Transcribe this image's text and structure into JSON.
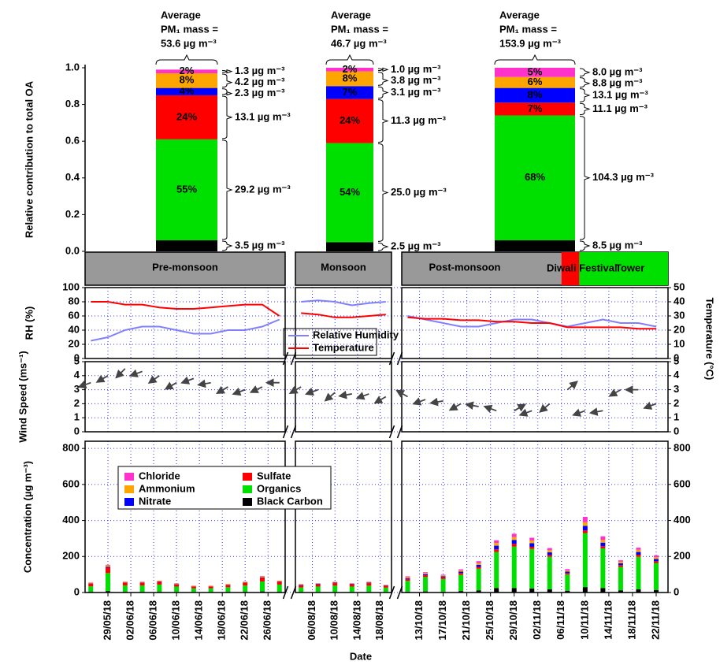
{
  "chart_data": [
    {
      "type": "stacked_bar",
      "y_label": "Relative contribution to total OA",
      "ylim": [
        0,
        1
      ],
      "yticks": [
        {
          "value": 0,
          "label": "0.0"
        },
        {
          "value": 0.2,
          "label": "0.2"
        },
        {
          "value": 0.4,
          "label": "0.4"
        },
        {
          "value": 0.6,
          "label": "0.6"
        },
        {
          "value": 0.8,
          "label": "0.8"
        },
        {
          "value": 1,
          "label": "1.0"
        }
      ],
      "categories": [
        "Pre-monsoon",
        "Monsoon",
        "Post-monsoon"
      ],
      "average_labels": [
        [
          "Average",
          "PM₁ mass =",
          "53.6 µg m⁻³"
        ],
        [
          "Average",
          "PM₁ mass =",
          "46.7 µg m⁻³"
        ],
        [
          "Average",
          "PM₁ mass =",
          "153.9 µg m⁻³"
        ]
      ],
      "series": [
        {
          "color": "#ff33cc",
          "values": [
            0.02,
            0.02,
            0.05
          ],
          "value_labels": [
            "2%",
            "2%",
            "5%"
          ],
          "mass_labels": [
            "1.3 µg m⁻³",
            "1.0 µg m⁻³",
            "8.0 µg m⁻³"
          ]
        },
        {
          "color": "#ffa500",
          "values": [
            0.08,
            0.08,
            0.06
          ],
          "value_labels": [
            "8%",
            "8%",
            "6%"
          ],
          "mass_labels": [
            "4.2 µg m⁻³",
            "3.8 µg m⁻³",
            "8.8 µg m⁻³"
          ]
        },
        {
          "color": "#0000ff",
          "values": [
            0.04,
            0.07,
            0.08
          ],
          "value_labels": [
            "4%",
            "7%",
            "8%"
          ],
          "mass_labels": [
            "2.3 µg m⁻³",
            "3.1 µg m⁻³",
            "13.1 µg m⁻³"
          ]
        },
        {
          "color": "#ff0000",
          "values": [
            0.24,
            0.24,
            0.07
          ],
          "value_labels": [
            "24%",
            "24%",
            "7%"
          ],
          "mass_labels": [
            "13.1 µg m⁻³",
            "11.3 µg m⁻³",
            "11.1 µg m⁻³"
          ]
        },
        {
          "color": "#00e000",
          "values": [
            0.55,
            0.54,
            0.68
          ],
          "value_labels": [
            "55%",
            "54%",
            "68%"
          ],
          "mass_labels": [
            "29.2 µg m⁻³",
            "25.0 µg m⁻³",
            "104.3 µg m⁻³"
          ]
        },
        {
          "color": "#000000",
          "values": [
            0.06,
            0.05,
            0.06
          ],
          "value_labels": [
            "6%",
            "5%",
            "6%"
          ],
          "mass_labels": [
            "3.5 µg m⁻³",
            "2.5 µg m⁻³",
            "8.5 µg m⁻³"
          ]
        }
      ]
    },
    {
      "type": "line",
      "y_label": "RH (%)",
      "y2_label": "Temperature (°C)",
      "ylim": [
        0,
        100
      ],
      "yticks": [
        0,
        20,
        40,
        60,
        80,
        100
      ],
      "y2lim": [
        0,
        50
      ],
      "y2ticks": [
        0,
        10,
        20,
        30,
        40,
        50
      ],
      "grid": true,
      "legend": "bottom",
      "periods": [
        {
          "name": "Diwali Festival",
          "color": "#ff0000",
          "start": "06/11/18",
          "end": "09/11/18"
        },
        {
          "name": "Tower",
          "color": "#00e000",
          "start": "09/11/18",
          "end": "24/11/18"
        }
      ],
      "x": [
        "26/05/18",
        "29/05/18",
        "01/06/18",
        "04/06/18",
        "07/06/18",
        "10/06/18",
        "13/06/18",
        "16/06/18",
        "19/06/18",
        "22/06/18",
        "25/06/18",
        "28/06/18",
        "04/08/18",
        "07/08/18",
        "10/08/18",
        "13/08/18",
        "16/08/18",
        "19/08/18",
        "11/10/18",
        "14/10/18",
        "17/10/18",
        "20/10/18",
        "23/10/18",
        "26/10/18",
        "29/10/18",
        "01/11/18",
        "04/11/18",
        "07/11/18",
        "10/11/18",
        "13/11/18",
        "16/11/18",
        "19/11/18",
        "22/11/18"
      ],
      "series": [
        {
          "name": "Relative Humidity",
          "color": "#8080ff",
          "values": [
            25,
            30,
            40,
            45,
            45,
            40,
            35,
            35,
            40,
            40,
            45,
            55,
            80,
            82,
            80,
            75,
            78,
            80,
            60,
            55,
            50,
            45,
            45,
            50,
            55,
            55,
            50,
            45,
            50,
            55,
            50,
            50,
            45
          ]
        },
        {
          "name": "Temperature",
          "color": "#ff0000",
          "axis": "y2",
          "values": [
            40,
            40,
            38,
            38,
            36,
            35,
            35,
            36,
            37,
            38,
            38,
            30,
            32,
            31,
            29,
            29,
            30,
            31,
            29,
            28,
            28,
            27,
            27,
            26,
            26,
            25,
            25,
            22,
            22,
            22,
            22,
            21,
            21
          ]
        }
      ]
    },
    {
      "type": "quiver",
      "y_label": "Wind Speed (ms⁻¹)",
      "ylim": [
        0,
        5
      ],
      "yticks": [
        0,
        1,
        2,
        3,
        4,
        5
      ],
      "y2lim": [
        0,
        5
      ],
      "y2ticks": [
        0,
        1,
        2,
        3,
        4,
        5
      ],
      "grid": true,
      "color": "#444444",
      "x": [
        "26/05/18",
        "29/05/18",
        "01/06/18",
        "04/06/18",
        "07/06/18",
        "10/06/18",
        "13/06/18",
        "16/06/18",
        "19/06/18",
        "22/06/18",
        "25/06/18",
        "28/06/18",
        "04/08/18",
        "07/08/18",
        "10/08/18",
        "13/08/18",
        "16/08/18",
        "19/08/18",
        "11/10/18",
        "14/10/18",
        "17/10/18",
        "20/10/18",
        "23/10/18",
        "26/10/18",
        "29/10/18",
        "01/11/18",
        "04/11/18",
        "07/11/18",
        "10/11/18",
        "13/11/18",
        "16/11/18",
        "19/11/18",
        "22/11/18"
      ],
      "values": [
        3.5,
        4.0,
        4.5,
        4.3,
        4.0,
        3.5,
        3.8,
        3.5,
        3.2,
        3.0,
        3.2,
        3.5,
        3.2,
        3.0,
        2.8,
        2.7,
        2.7,
        2.5,
        2.5,
        2.3,
        2.2,
        2.0,
        1.8,
        1.5,
        1.5,
        1.5,
        2.0,
        3.0,
        1.5,
        1.5,
        3.0,
        3.0,
        2.0
      ],
      "directions": [
        200,
        210,
        225,
        200,
        215,
        210,
        200,
        190,
        210,
        200,
        205,
        180,
        210,
        200,
        220,
        190,
        200,
        210,
        150,
        200,
        190,
        210,
        170,
        160,
        30,
        200,
        220,
        40,
        200,
        190,
        210,
        180,
        200
      ]
    },
    {
      "type": "stacked_time_bar",
      "y_label": "Concentration (µg m⁻³)",
      "ylim": [
        0,
        840
      ],
      "yticks": [
        0,
        200,
        400,
        600,
        800
      ],
      "y2lim": [
        0,
        840
      ],
      "y2ticks": [
        0,
        200,
        400,
        600,
        800
      ],
      "grid": true,
      "legend": "top-left",
      "x_label": "Date",
      "x_segments": [
        [
          "25/05/18",
          "29/06/18"
        ],
        [
          "03/08/18",
          "20/08/18"
        ],
        [
          "10/10/18",
          "24/11/18"
        ]
      ],
      "xticks": [
        "29/05/18",
        "02/06/18",
        "06/06/18",
        "10/06/18",
        "14/06/18",
        "18/06/18",
        "22/06/18",
        "26/06/18",
        "06/08/18",
        "10/08/18",
        "14/08/18",
        "18/08/18",
        "13/10/18",
        "17/10/18",
        "21/10/18",
        "25/10/18",
        "29/10/18",
        "02/11/18",
        "06/11/18",
        "10/11/18",
        "14/11/18",
        "18/11/18",
        "22/11/18"
      ],
      "x": [
        "26/05/18",
        "29/05/18",
        "01/06/18",
        "04/06/18",
        "07/06/18",
        "10/06/18",
        "13/06/18",
        "16/06/18",
        "19/06/18",
        "22/06/18",
        "25/06/18",
        "28/06/18",
        "04/08/18",
        "07/08/18",
        "10/08/18",
        "13/08/18",
        "16/08/18",
        "19/08/18",
        "11/10/18",
        "14/10/18",
        "17/10/18",
        "20/10/18",
        "23/10/18",
        "26/10/18",
        "29/10/18",
        "01/11/18",
        "04/11/18",
        "07/11/18",
        "10/11/18",
        "13/11/18",
        "16/11/18",
        "19/11/18",
        "22/11/18"
      ],
      "series": [
        {
          "name": "Chloride",
          "color": "#ff33cc",
          "values": [
            1,
            3,
            1,
            1,
            1,
            1,
            1,
            1,
            1,
            1,
            2,
            1,
            1,
            1,
            1,
            1,
            1,
            1,
            5,
            5,
            4,
            6,
            10,
            15,
            18,
            15,
            12,
            8,
            30,
            20,
            8,
            12,
            10
          ]
        },
        {
          "name": "Ammonium",
          "color": "#ffa500",
          "values": [
            4,
            8,
            4,
            4,
            4,
            4,
            3,
            3,
            4,
            4,
            6,
            4,
            3,
            3,
            4,
            3,
            4,
            3,
            5,
            6,
            5,
            7,
            10,
            15,
            16,
            15,
            12,
            6,
            20,
            15,
            9,
            12,
            10
          ]
        },
        {
          "name": "Nitrate",
          "color": "#0000ff",
          "values": [
            2,
            5,
            2,
            2,
            2,
            2,
            1,
            1,
            2,
            2,
            3,
            2,
            3,
            3,
            3,
            3,
            3,
            2,
            5,
            6,
            5,
            8,
            12,
            20,
            22,
            20,
            15,
            8,
            25,
            20,
            10,
            15,
            12
          ]
        },
        {
          "name": "Sulfate",
          "color": "#ff0000",
          "values": [
            15,
            30,
            15,
            15,
            15,
            12,
            10,
            10,
            12,
            15,
            20,
            15,
            12,
            12,
            14,
            12,
            14,
            10,
            10,
            10,
            10,
            10,
            10,
            15,
            15,
            12,
            10,
            8,
            15,
            12,
            10,
            12,
            10
          ]
        },
        {
          "name": "Organics",
          "color": "#00e000",
          "values": [
            30,
            100,
            35,
            35,
            40,
            30,
            20,
            20,
            25,
            35,
            55,
            40,
            25,
            30,
            35,
            30,
            35,
            25,
            60,
            80,
            70,
            90,
            120,
            200,
            230,
            220,
            180,
            90,
            300,
            220,
            130,
            180,
            150
          ]
        },
        {
          "name": "Black Carbon",
          "color": "#000000",
          "values": [
            4,
            8,
            4,
            4,
            4,
            3,
            3,
            3,
            4,
            4,
            6,
            4,
            3,
            3,
            3,
            3,
            3,
            2,
            5,
            6,
            5,
            8,
            12,
            25,
            25,
            22,
            18,
            10,
            30,
            25,
            12,
            18,
            14
          ]
        }
      ]
    }
  ]
}
